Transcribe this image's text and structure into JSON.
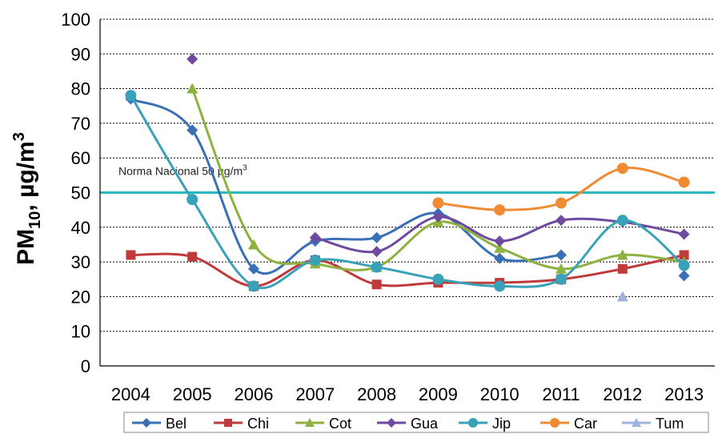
{
  "chart_data": {
    "type": "line",
    "title": "",
    "xlabel": "",
    "ylabel": {
      "main": "PM",
      "sub": "10",
      "rest": ", µg/m",
      "sup": "3"
    },
    "categories": [
      "2004",
      "2005",
      "2006",
      "2007",
      "2008",
      "2009",
      "2010",
      "2011",
      "2012",
      "2013"
    ],
    "ylim": [
      0,
      100
    ],
    "yticks": [
      "0",
      "10",
      "20",
      "30",
      "40",
      "50",
      "60",
      "70",
      "80",
      "90",
      "100"
    ],
    "grid": "horizontal dashed",
    "legend_position": "bottom",
    "reference_line": {
      "value": 50,
      "color": "#29b8be",
      "label": {
        "text": "Norma Nacional  50 µg/m",
        "sup": "3"
      }
    },
    "series": [
      {
        "name": "Bel",
        "color": "#3a6fb6",
        "marker": "diamond",
        "values": [
          77,
          68,
          28,
          36,
          37,
          44,
          31,
          32,
          null,
          26
        ]
      },
      {
        "name": "Chi",
        "color": "#c0393b",
        "marker": "square",
        "values": [
          32,
          31.5,
          23,
          30.5,
          23.5,
          24,
          24,
          25,
          28,
          32
        ]
      },
      {
        "name": "Cot",
        "color": "#8db23f",
        "marker": "triangle",
        "values": [
          null,
          80,
          35,
          29.5,
          28.5,
          41.5,
          34,
          28,
          32,
          30
        ]
      },
      {
        "name": "Gua",
        "color": "#6e4b9e",
        "marker": "diamond",
        "values": [
          null,
          88.5,
          null,
          37,
          33,
          43,
          36,
          42,
          41.5,
          38
        ]
      },
      {
        "name": "Jip",
        "color": "#3aa2b8",
        "marker": "circle",
        "values": [
          78,
          48,
          23,
          30.5,
          28.5,
          25,
          23,
          25,
          42,
          29
        ]
      },
      {
        "name": "Car",
        "color": "#ef8b33",
        "marker": "circle",
        "values": [
          null,
          null,
          null,
          null,
          null,
          47,
          45,
          47,
          57,
          53
        ]
      },
      {
        "name": "Tum",
        "color": "#9fb4dc",
        "marker": "triangle",
        "values": [
          null,
          null,
          null,
          null,
          null,
          null,
          null,
          null,
          20,
          null
        ]
      }
    ]
  }
}
